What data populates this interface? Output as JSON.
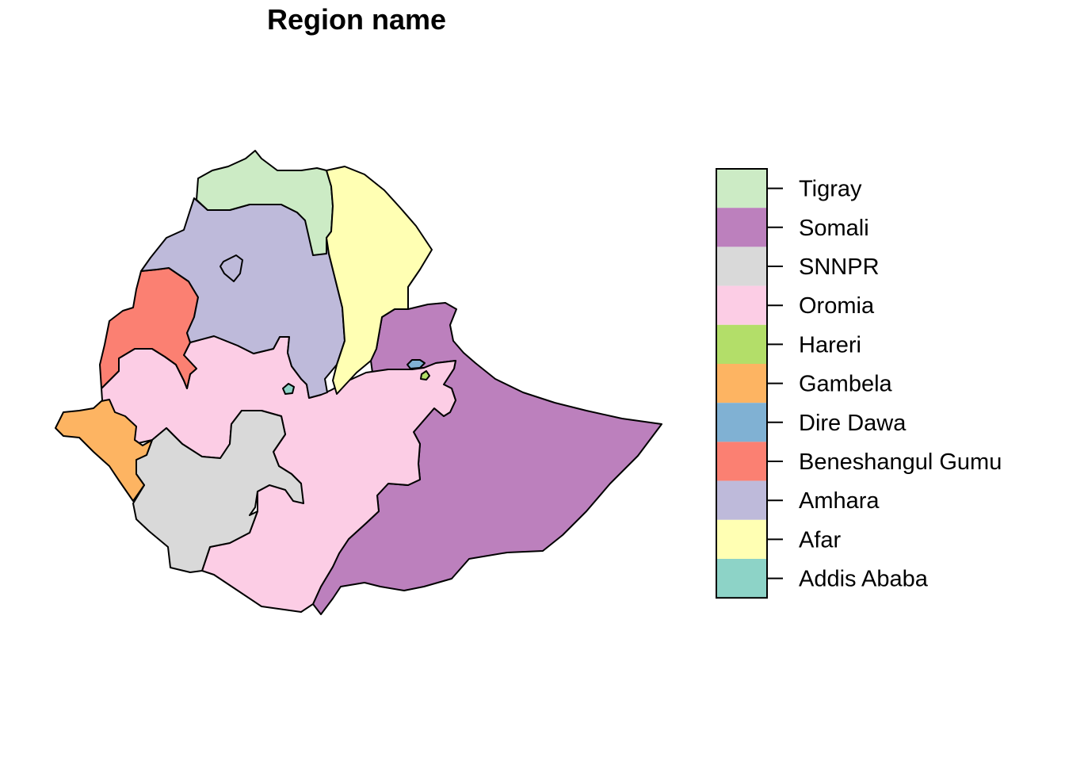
{
  "title": "Region name",
  "regions": [
    {
      "id": "tigray",
      "name": "Tigray",
      "color": "#CCEBC5"
    },
    {
      "id": "somali",
      "name": "Somali",
      "color": "#BC80BD"
    },
    {
      "id": "snnpr",
      "name": "SNNPR",
      "color": "#D9D9D9"
    },
    {
      "id": "oromia",
      "name": "Oromia",
      "color": "#FCCDE5"
    },
    {
      "id": "hareri",
      "name": "Hareri",
      "color": "#B3DE69"
    },
    {
      "id": "gambela",
      "name": "Gambela",
      "color": "#FDB462"
    },
    {
      "id": "dire-dawa",
      "name": "Dire Dawa",
      "color": "#80B1D3"
    },
    {
      "id": "beneshangul-gumu",
      "name": "Beneshangul Gumu",
      "color": "#FB8072"
    },
    {
      "id": "amhara",
      "name": "Amhara",
      "color": "#BEBADA"
    },
    {
      "id": "afar",
      "name": "Afar",
      "color": "#FFFFB3"
    },
    {
      "id": "addis-ababa",
      "name": "Addis Ababa",
      "color": "#8DD3C7"
    }
  ]
}
